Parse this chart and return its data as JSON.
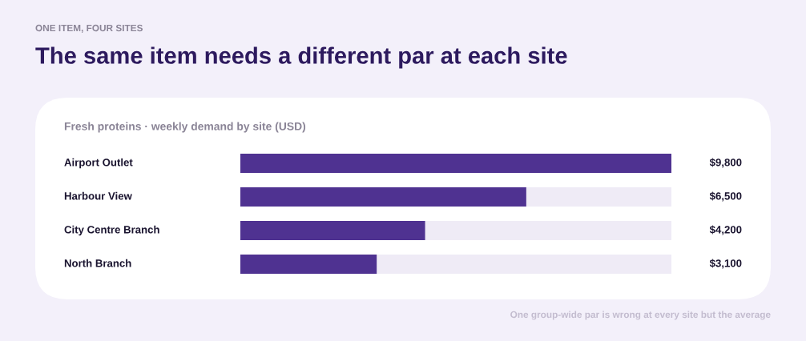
{
  "chart_data": {
    "type": "bar",
    "orientation": "horizontal",
    "subtitle": "ONE ITEM, FOUR SITES",
    "title": "The same item needs a different par at each site",
    "categories": [
      "Airport Outlet",
      "Harbour View",
      "City Centre Branch",
      "North Branch"
    ],
    "values": [
      9800,
      6500,
      4200,
      3100
    ],
    "value_labels": [
      "$9,800",
      "$6,500",
      "$4,200",
      "$3,100"
    ],
    "color": "#4f3291",
    "xlim": [
      0,
      9800
    ],
    "tick_labels": false,
    "annotations": [
      "Fresh proteins · weekly demand by site (USD)",
      "One group-wide par is wrong at every site but the average"
    ]
  }
}
